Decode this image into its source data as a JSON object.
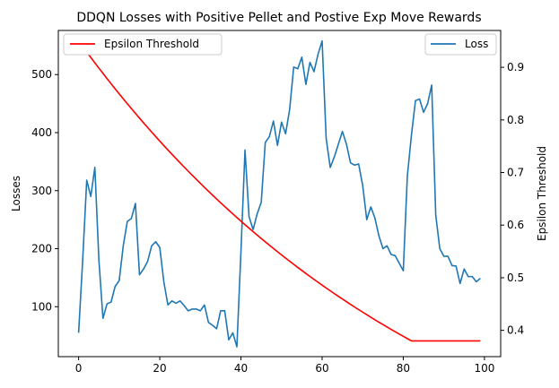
{
  "chart_data": {
    "type": "line",
    "title": "DDQN Losses with Positive Pellet and Postive Exp Move Rewards",
    "xlabel": "",
    "ylabel": "Losses",
    "y2label": "Epsilon Threshold",
    "xlim": [
      -5,
      104
    ],
    "ylim": [
      14,
      576
    ],
    "y2lim": [
      0.35,
      0.97
    ],
    "xticks": [
      0,
      20,
      40,
      60,
      80,
      100
    ],
    "yticks": [
      100,
      200,
      300,
      400,
      500
    ],
    "y2ticks": [
      0.4,
      0.5,
      0.6,
      0.7,
      0.8,
      0.9
    ],
    "grid": false,
    "legend_left": "top-left",
    "legend_right": "top-right",
    "series": [
      {
        "name": "Loss",
        "axis": "left",
        "color": "#1f77b4",
        "x": [
          0,
          1,
          2,
          3,
          4,
          5,
          6,
          7,
          8,
          9,
          10,
          11,
          12,
          13,
          14,
          15,
          16,
          17,
          18,
          19,
          20,
          21,
          22,
          23,
          24,
          25,
          26,
          27,
          28,
          29,
          30,
          31,
          32,
          33,
          34,
          35,
          36,
          37,
          38,
          39,
          40,
          41,
          42,
          43,
          44,
          45,
          46,
          47,
          48,
          49,
          50,
          51,
          52,
          53,
          54,
          55,
          56,
          57,
          58,
          59,
          60,
          61,
          62,
          63,
          64,
          65,
          66,
          67,
          68,
          69,
          70,
          71,
          72,
          73,
          74,
          75,
          76,
          77,
          78,
          79,
          80,
          81,
          82,
          83,
          84,
          85,
          86,
          87,
          88,
          89,
          90,
          91,
          92,
          93,
          94,
          95,
          96,
          97,
          98,
          99
        ],
        "values": [
          55,
          180,
          318,
          290,
          340,
          180,
          80,
          105,
          108,
          135,
          145,
          205,
          247,
          252,
          278,
          155,
          165,
          178,
          205,
          212,
          202,
          143,
          103,
          110,
          106,
          110,
          102,
          93,
          96,
          96,
          93,
          103,
          73,
          68,
          62,
          93,
          93,
          43,
          55,
          31,
          195,
          370,
          255,
          233,
          260,
          280,
          383,
          393,
          420,
          378,
          418,
          398,
          440,
          513,
          510,
          530,
          483,
          521,
          505,
          535,
          558,
          390,
          340,
          358,
          380,
          402,
          380,
          348,
          344,
          346,
          309,
          250,
          272,
          253,
          222,
          200,
          205,
          190,
          188,
          175,
          162,
          325,
          395,
          455,
          458,
          435,
          450,
          482,
          258,
          200,
          187,
          187,
          171,
          170,
          140,
          165,
          152,
          152,
          143,
          149
        ]
      },
      {
        "name": "Epsilon Threshold",
        "axis": "right",
        "color": "#ff0000",
        "x": [
          0,
          82,
          99
        ],
        "values": [
          0.95,
          0.38,
          0.38
        ],
        "curve": "exponential-decay then flat"
      }
    ]
  }
}
